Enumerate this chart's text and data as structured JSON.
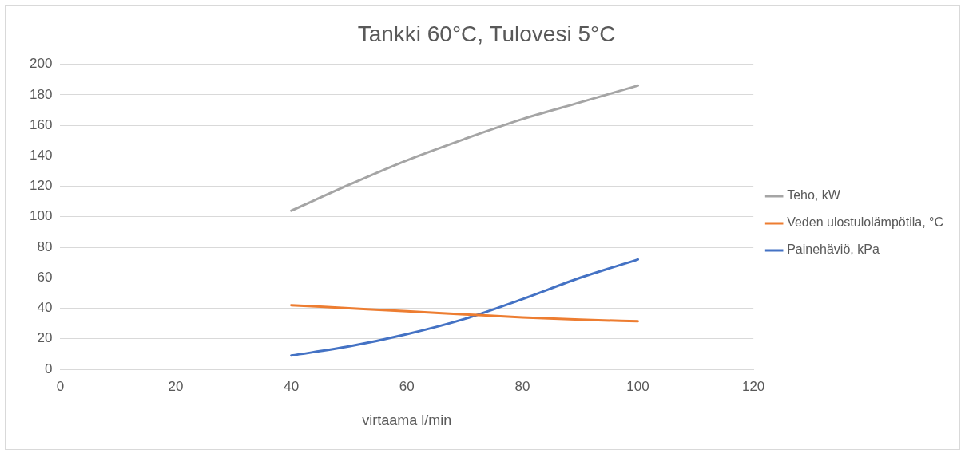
{
  "chart_data": {
    "type": "line",
    "title": "Tankki 60°C, Tulovesi 5°C",
    "xlabel": "virtaama l/min",
    "x": [
      40,
      50,
      60,
      70,
      80,
      90,
      100
    ],
    "series": [
      {
        "name": "Teho, kW",
        "color": "#a5a5a5",
        "values": [
          104,
          121,
          137,
          151,
          164,
          175,
          186
        ]
      },
      {
        "name": "Veden ulostulolämpötila, °C",
        "color": "#ed7d31",
        "values": [
          42,
          40,
          38,
          36,
          34,
          32.5,
          31.5
        ]
      },
      {
        "name": "Painehäviö, kPa",
        "color": "#4472c4",
        "values": [
          9,
          15,
          23,
          33,
          46,
          60,
          72
        ]
      }
    ],
    "xlim": [
      0,
      120
    ],
    "xticks": [
      0,
      20,
      40,
      60,
      80,
      100,
      120
    ],
    "ylim": [
      0,
      200
    ],
    "yticks": [
      0,
      20,
      40,
      60,
      80,
      100,
      120,
      140,
      160,
      180,
      200
    ],
    "grid": "y",
    "legend": "right",
    "marker": "none",
    "line_style": "solid"
  }
}
